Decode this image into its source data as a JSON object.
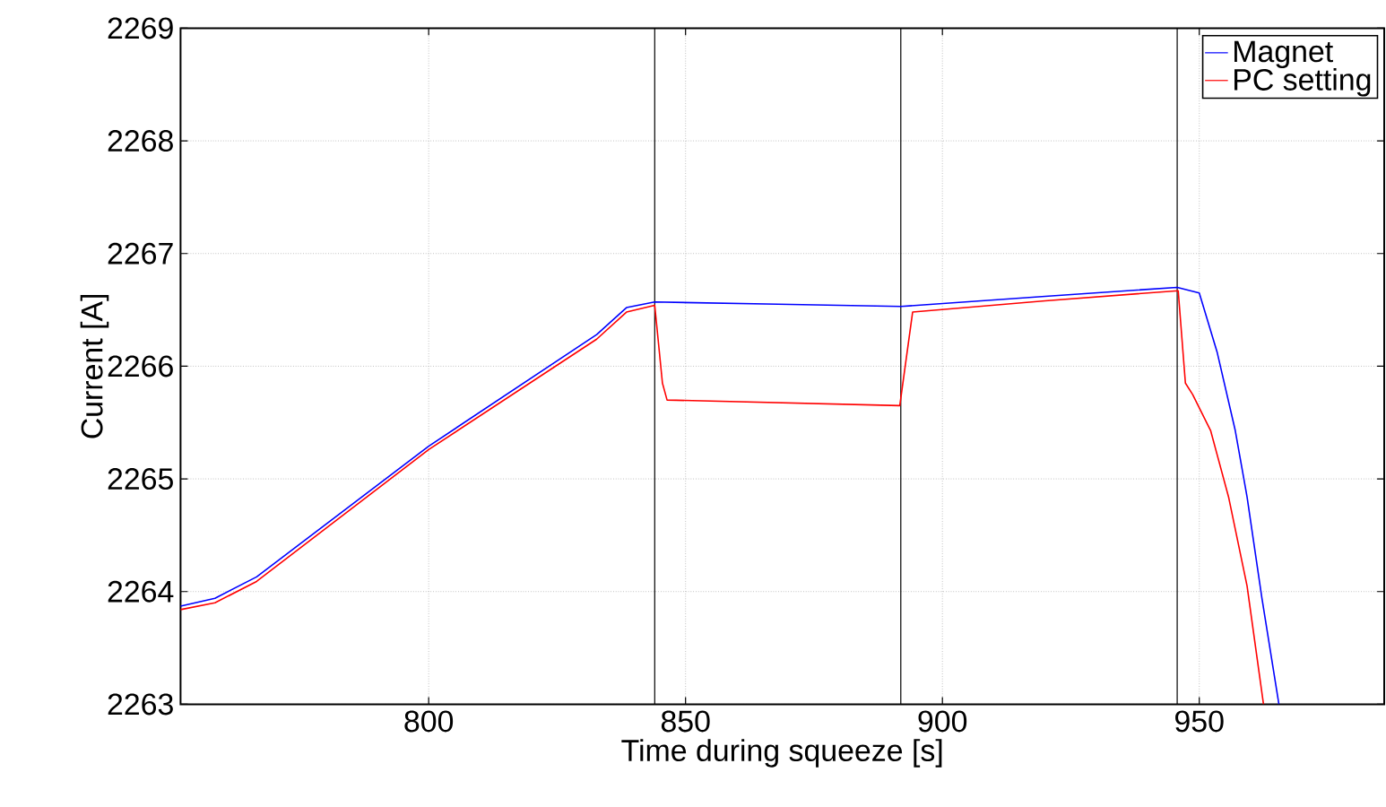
{
  "chart_data": {
    "type": "line",
    "xlabel": "Time during squeeze [s]",
    "ylabel": "Current [A]",
    "xlim": [
      751.7,
      986
    ],
    "ylim": [
      2263,
      2269
    ],
    "xticks": [
      800,
      850,
      900,
      950
    ],
    "yticks": [
      2263,
      2264,
      2265,
      2266,
      2267,
      2268,
      2269
    ],
    "grid": true,
    "legend": "top right",
    "marker": "none",
    "line_style": "solid",
    "series": [
      {
        "name": "Magnet",
        "color": "#0000ff",
        "x": [
          751.7,
          758.4,
          766.5,
          800,
          832.7,
          838.5,
          844,
          868,
          891.9,
          920,
          945.7,
          950,
          953.5,
          957,
          959.3,
          962.2,
          965.5
        ],
        "values": [
          2263.87,
          2263.94,
          2264.13,
          2265.29,
          2266.28,
          2266.52,
          2266.57,
          2266.55,
          2266.53,
          2266.62,
          2266.7,
          2266.65,
          2266.12,
          2265.43,
          2264.84,
          2263.94,
          2263.0
        ]
      },
      {
        "name": "PC setting",
        "color": "#ff0000",
        "x": [
          751.7,
          758.4,
          766.5,
          800,
          832.7,
          838.5,
          844,
          845.5,
          846.4,
          891.7,
          894.2,
          920,
          945.9,
          947.3,
          948.7,
          952.2,
          955.7,
          959.3,
          962.5
        ],
        "values": [
          2263.84,
          2263.9,
          2264.09,
          2265.26,
          2266.24,
          2266.48,
          2266.54,
          2265.85,
          2265.7,
          2265.65,
          2266.48,
          2266.58,
          2266.67,
          2265.85,
          2265.75,
          2265.43,
          2264.84,
          2264.05,
          2263.0
        ]
      }
    ],
    "ref_lines": [
      {
        "axis": "x",
        "value": 844,
        "color": "#000000"
      },
      {
        "axis": "x",
        "value": 891.9,
        "color": "#000000"
      },
      {
        "axis": "x",
        "value": 945.7,
        "color": "#000000"
      }
    ]
  }
}
